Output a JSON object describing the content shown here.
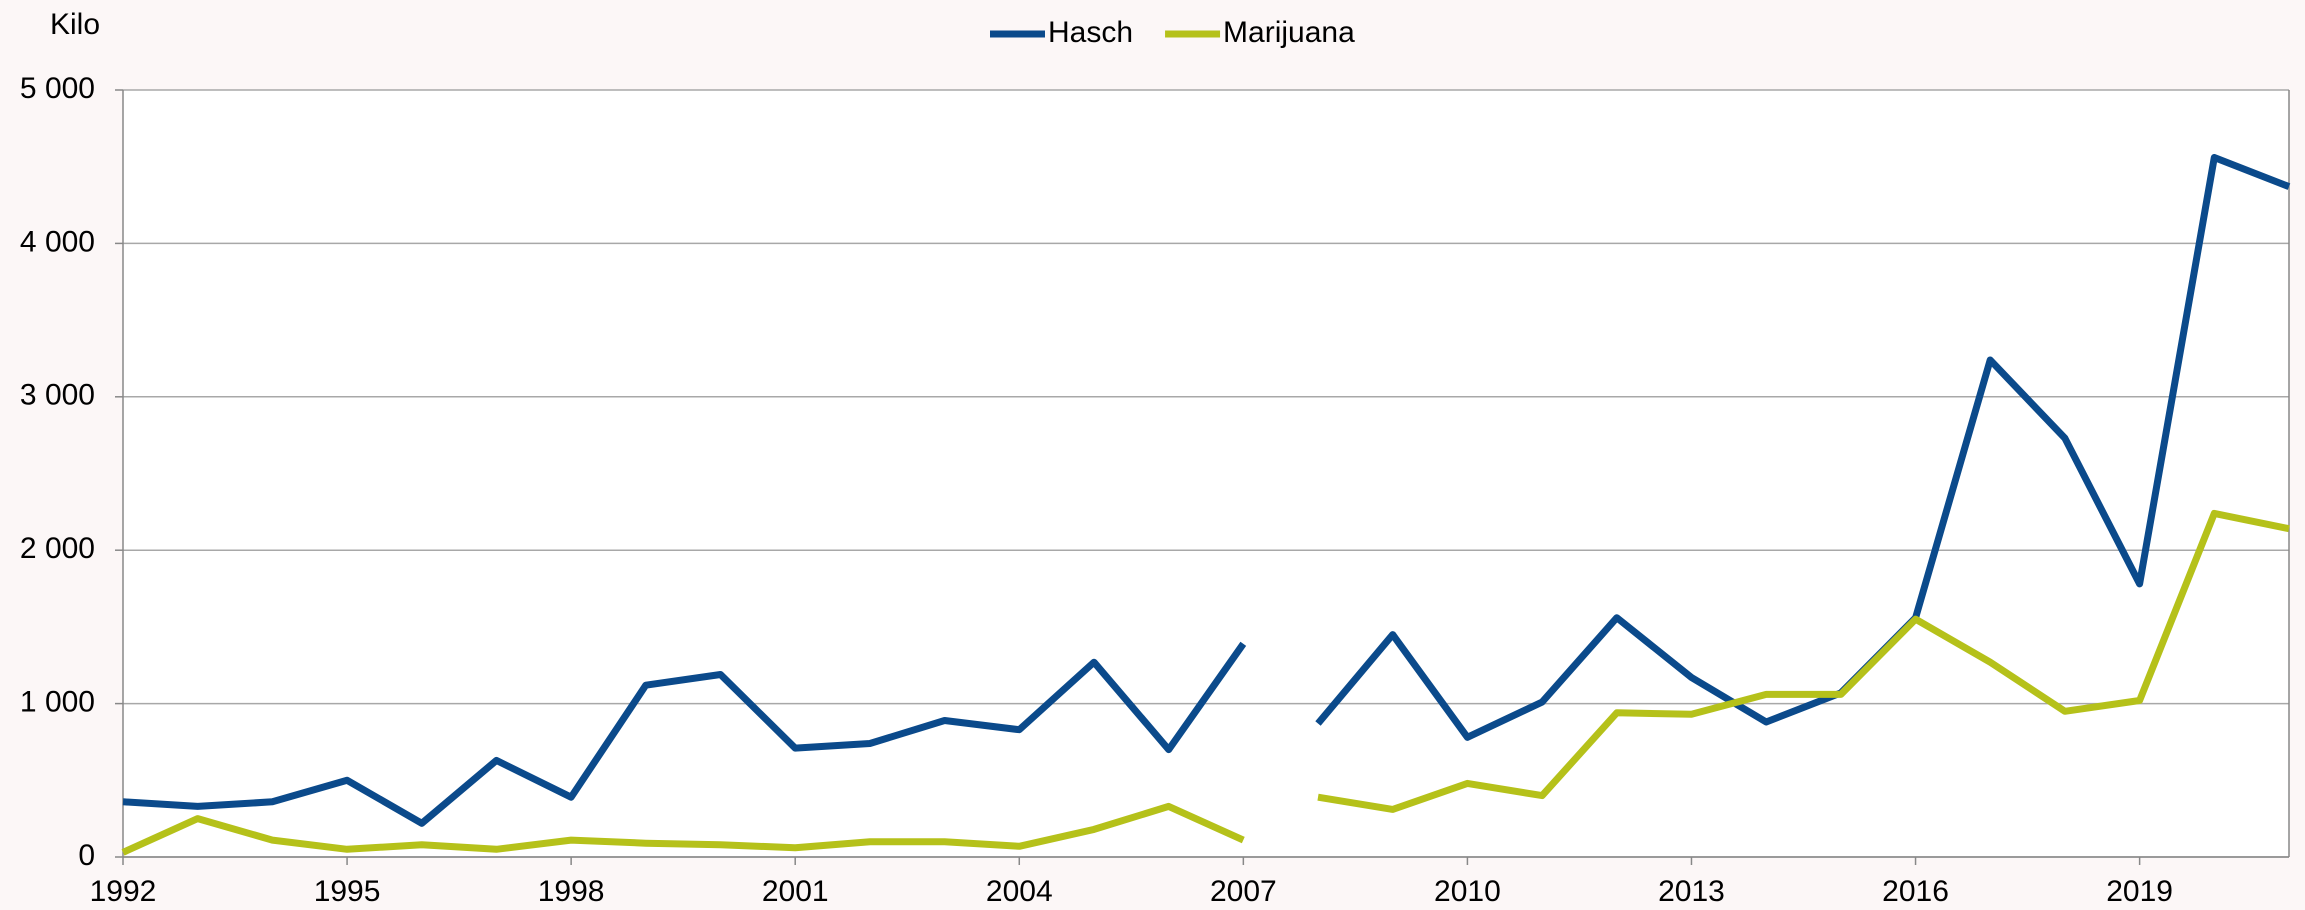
{
  "chart_data": {
    "type": "line",
    "y_label": "Kilo",
    "x": [
      1992,
      1993,
      1994,
      1995,
      1996,
      1997,
      1998,
      1999,
      2000,
      2001,
      2002,
      2003,
      2004,
      2005,
      2006,
      2007,
      null,
      2008,
      2009,
      2010,
      2011,
      2012,
      2013,
      2014,
      2015,
      2016,
      2017,
      2018,
      2019,
      2020,
      2021
    ],
    "series": [
      {
        "name": "Hasch",
        "color": "#0b4a8b",
        "values": [
          360,
          330,
          360,
          500,
          220,
          630,
          390,
          1120,
          1190,
          710,
          740,
          890,
          830,
          1270,
          700,
          1390,
          null,
          870,
          1450,
          780,
          1010,
          1560,
          1170,
          880,
          1070,
          1560,
          3240,
          2730,
          1780,
          4560,
          4370
        ]
      },
      {
        "name": "Marijuana",
        "color": "#b5c11a",
        "values": [
          30,
          250,
          110,
          50,
          80,
          50,
          110,
          90,
          80,
          60,
          100,
          100,
          70,
          180,
          330,
          110,
          null,
          390,
          310,
          480,
          400,
          940,
          930,
          1060,
          1060,
          1550,
          1270,
          950,
          1020,
          2240,
          2140
        ]
      }
    ],
    "xlim": [
      1992,
      2021
    ],
    "xticks": [
      1992,
      1995,
      1998,
      2001,
      2004,
      2007,
      2010,
      2013,
      2016,
      2019
    ],
    "ylim": [
      0,
      5000
    ],
    "yticks": [
      0,
      {
        "value": 1000,
        "label": "1 000"
      },
      {
        "value": 2000,
        "label": "2 000"
      },
      {
        "value": 3000,
        "label": "3 000"
      },
      {
        "value": 4000,
        "label": "4 000"
      },
      {
        "value": 5000,
        "label": "5 000"
      }
    ],
    "grid": true,
    "legend": "top"
  }
}
